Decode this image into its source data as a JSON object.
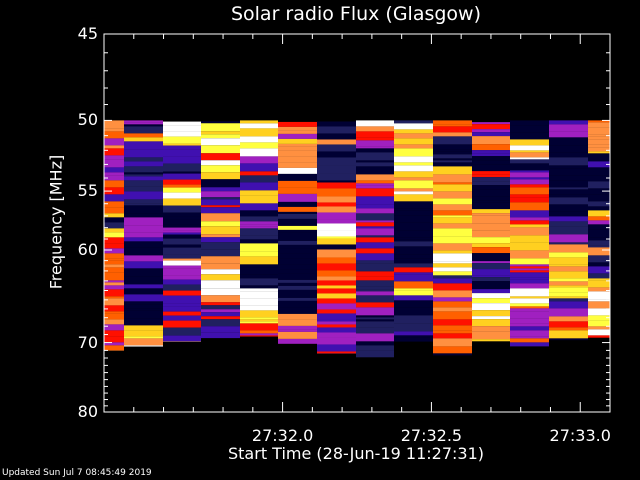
{
  "chart_data": {
    "type": "heatmap",
    "title": "Solar radio Flux (Glasgow)",
    "xlabel": "Start Time (28-Jun-19 11:27:31)",
    "ylabel": "Frequency [MHz]",
    "y_ticks": [
      {
        "value": 45,
        "label": "45"
      },
      {
        "value": 50,
        "label": "50"
      },
      {
        "value": 55,
        "label": "55"
      },
      {
        "value": 60,
        "label": "60"
      },
      {
        "value": 70,
        "label": "70"
      },
      {
        "value": 80,
        "label": "80"
      }
    ],
    "y_scale": "reciprocal",
    "ylim": [
      45,
      80
    ],
    "x_ticks": [
      {
        "value": 0.6,
        "label": "27:32.0"
      },
      {
        "value": 1.1,
        "label": "27:32.5"
      },
      {
        "value": 1.6,
        "label": "27:33.0"
      }
    ],
    "xlim": [
      0,
      1.7
    ],
    "data_ylim": [
      50,
      72
    ],
    "colormap": [
      "#000033",
      "#202060",
      "#4010b0",
      "#a020c0",
      "#ff1000",
      "#ff6000",
      "#ff9040",
      "#ffd020",
      "#ffff40",
      "#ffffff"
    ],
    "grid": false
  },
  "footer": "Updated Sun Jul  7 08:45:49 2019"
}
